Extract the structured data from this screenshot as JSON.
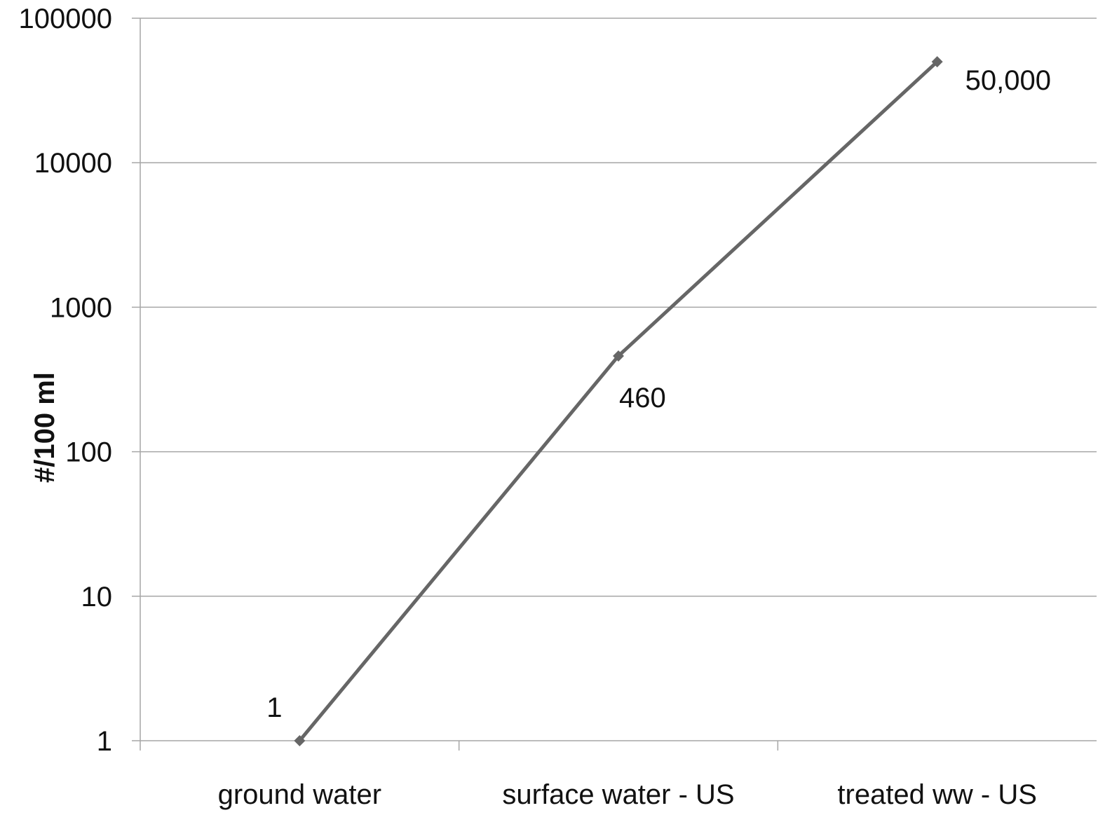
{
  "chart_data": {
    "type": "line",
    "scale": "log",
    "categories": [
      "ground water",
      "surface water - US",
      "treated ww - US"
    ],
    "values": [
      1,
      460,
      50000
    ],
    "data_labels": [
      "1",
      "460",
      "50,000"
    ],
    "ylabel": "#/100 ml",
    "xlabel": "",
    "title": "",
    "ylim": [
      1,
      100000
    ],
    "yticks": [
      1,
      10,
      100,
      1000,
      10000,
      100000
    ],
    "ytick_labels": [
      "1",
      "10",
      "100",
      "1000",
      "10000",
      "100000"
    ],
    "grid": true,
    "legend": "none",
    "line_color": "#666666",
    "grid_color": "#a6a6a6"
  }
}
